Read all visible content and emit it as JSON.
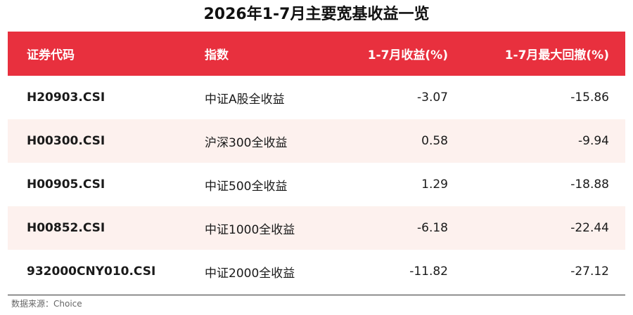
{
  "chart_data": {
    "type": "table",
    "title": "2026年1-7月主要宽基收益一览",
    "columns": [
      "证券代码",
      "指数",
      "1-7月收益(%)",
      "1-7月最大回撤(%)"
    ],
    "rows": [
      {
        "code": "H20903.CSI",
        "name": "中证A股全收益",
        "return": "-3.07",
        "drawdown": "-15.86"
      },
      {
        "code": "H00300.CSI",
        "name": "沪深300全收益",
        "return": "0.58",
        "drawdown": "-9.94"
      },
      {
        "code": "H00905.CSI",
        "name": "中证500全收益",
        "return": "1.29",
        "drawdown": "-18.88"
      },
      {
        "code": "H00852.CSI",
        "name": "中证1000全收益",
        "return": "-6.18",
        "drawdown": "-22.44"
      },
      {
        "code": "932000CNY010.CSI",
        "name": "中证2000全收益",
        "return": "-11.82",
        "drawdown": "-27.12"
      }
    ],
    "source": "数据来源：Choice"
  },
  "colors": {
    "header_bg": "#e8303e",
    "stripe_bg": "#fdf1ee",
    "header_text": "#ffffff"
  }
}
